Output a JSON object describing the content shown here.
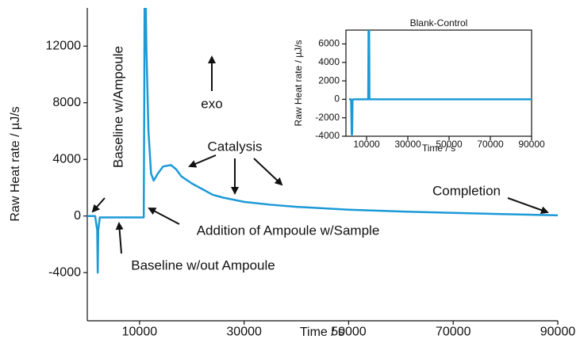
{
  "chart_data": [
    {
      "type": "line",
      "x_label": "Time / s",
      "y_label": "Raw Heat rate / µJ/s",
      "xlim": [
        0,
        90000
      ],
      "ylim": [
        -7400,
        14700
      ],
      "xticks": [
        10000,
        30000,
        50000,
        70000,
        90000
      ],
      "yticks": [
        -4000,
        0,
        4000,
        8000,
        12000
      ],
      "x": [
        0,
        1500,
        1900,
        2000,
        2100,
        2400,
        3000,
        6000,
        10000,
        10800,
        10900,
        11000,
        11300,
        11700,
        12200,
        12700,
        13500,
        14500,
        16000,
        17000,
        18000,
        20000,
        22000,
        24000,
        26000,
        30000,
        35000,
        40000,
        50000,
        60000,
        70000,
        80000,
        90000
      ],
      "series": [
        {
          "name": "Raw Heat rate",
          "color": "#1b9ad6",
          "values": [
            0,
            0,
            -1000,
            -4000,
            -1000,
            -100,
            -100,
            -100,
            -100,
            -100,
            8000,
            20000,
            12000,
            6000,
            3000,
            2500,
            3000,
            3500,
            3600,
            3300,
            2800,
            2300,
            1900,
            1500,
            1300,
            1000,
            800,
            650,
            450,
            320,
            220,
            130,
            50
          ]
        }
      ],
      "annotations": [
        "Baseline w/Ampoule",
        "exo",
        "Catalysis",
        "Addition of Ampoule w/Sample",
        "Baseline w/out Ampoule",
        "Completion"
      ]
    },
    {
      "type": "line",
      "title": "Blank-Control",
      "x_label": "Time / s",
      "y_label": "Raw Heat rate / µJ/s",
      "xlim": [
        0,
        90000
      ],
      "ylim": [
        -4000,
        7500
      ],
      "xticks": [
        10000,
        30000,
        50000,
        70000,
        90000
      ],
      "yticks": [
        -4000,
        -2000,
        0,
        2000,
        4000,
        6000
      ],
      "x": [
        1500,
        2500,
        2800,
        3000,
        3200,
        3600,
        10800,
        11000,
        11200,
        11400,
        90000
      ],
      "series": [
        {
          "name": "Raw Heat rate",
          "color": "#1b9ad6",
          "values": [
            0,
            0,
            -3800,
            -3800,
            -100,
            0,
            0,
            9000,
            9000,
            0,
            0
          ]
        }
      ]
    }
  ]
}
